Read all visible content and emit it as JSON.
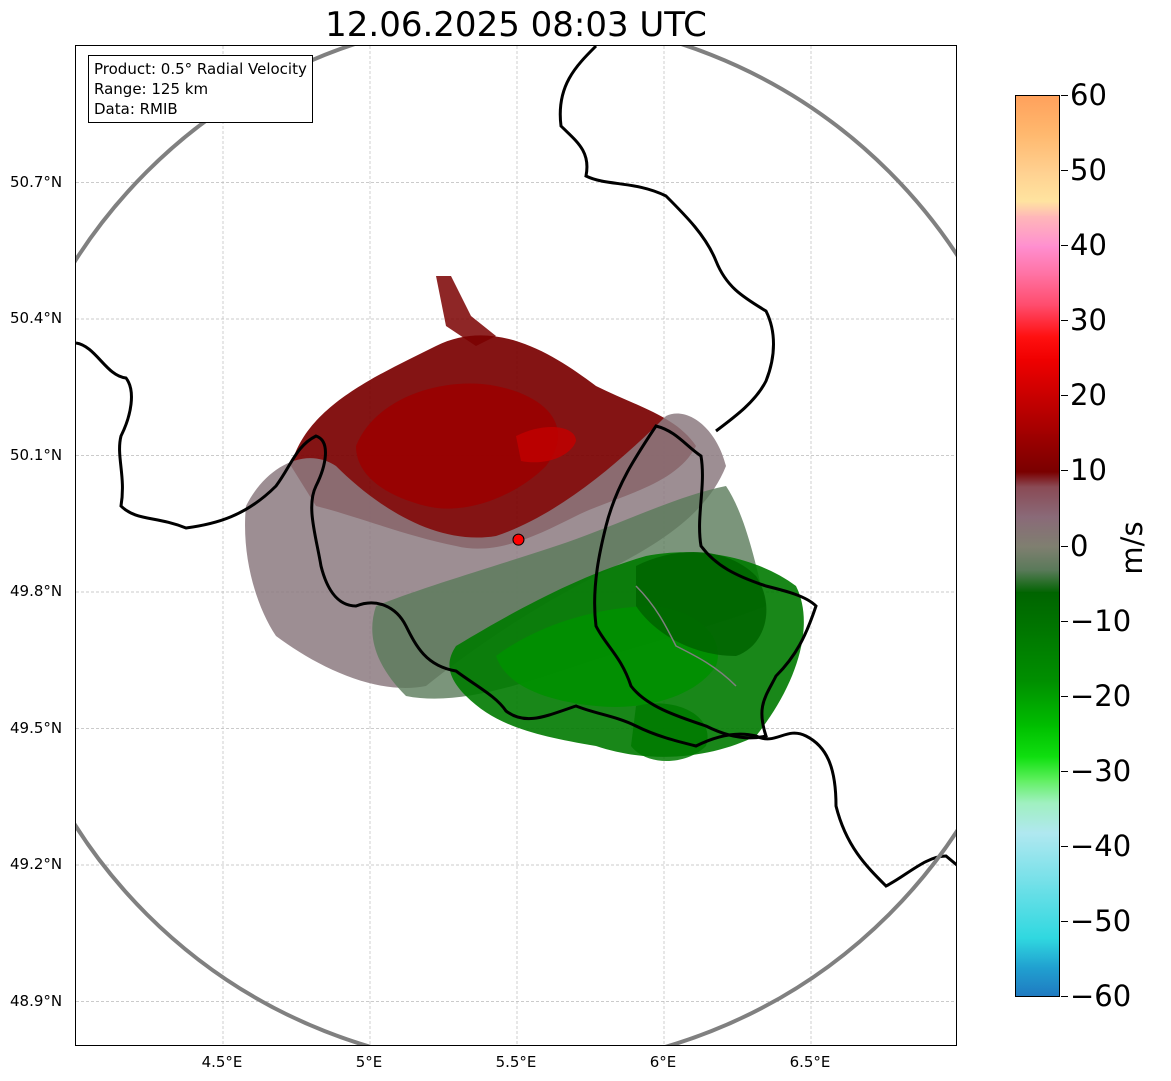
{
  "title": "12.06.2025 08:03 UTC",
  "info_box": {
    "product": "Product: 0.5° Radial Velocity",
    "range": "Range: 125 km",
    "data": "Data: RMIB"
  },
  "map": {
    "lon_range": [
      4.0,
      7.0
    ],
    "lat_range": [
      48.8,
      51.0
    ],
    "lat_ticks": [
      {
        "value": 50.7,
        "label": "50.7°N"
      },
      {
        "value": 50.4,
        "label": "50.4°N"
      },
      {
        "value": 50.1,
        "label": "50.1°N"
      },
      {
        "value": 49.8,
        "label": "49.8°N"
      },
      {
        "value": 49.5,
        "label": "49.5°N"
      },
      {
        "value": 49.2,
        "label": "49.2°N"
      },
      {
        "value": 48.9,
        "label": "48.9°N"
      }
    ],
    "lon_ticks": [
      {
        "value": 4.5,
        "label": "4.5°E"
      },
      {
        "value": 5.0,
        "label": "5°E"
      },
      {
        "value": 5.5,
        "label": "5.5°E"
      },
      {
        "value": 6.0,
        "label": "6°E"
      },
      {
        "value": 6.5,
        "label": "6.5°E"
      }
    ],
    "radar_site": {
      "lon": 5.505,
      "lat": 49.915,
      "color": "#ff0000"
    },
    "range_ring_color": "#808080",
    "border_color": "#000000",
    "grid": true,
    "echo_regions": [
      {
        "name": "inbound",
        "velocity": 15,
        "color": "#8b0000"
      },
      {
        "name": "near-zero",
        "velocity": 0,
        "color": "#8c7a80"
      },
      {
        "name": "outbound",
        "velocity": -15,
        "color": "#0a8a0a"
      }
    ]
  },
  "colorbar": {
    "unit": "m/s",
    "min": -60,
    "max": 60,
    "ticks": [
      "60",
      "50",
      "40",
      "30",
      "20",
      "10",
      "0",
      "−10",
      "−20",
      "−30",
      "−40",
      "−50",
      "−60"
    ],
    "stops": [
      {
        "v": 60,
        "c": "#ffa15c"
      },
      {
        "v": 55,
        "c": "#ffb86e"
      },
      {
        "v": 50,
        "c": "#ffd090"
      },
      {
        "v": 46,
        "c": "#ffe4a0"
      },
      {
        "v": 44,
        "c": "#ffb8b8"
      },
      {
        "v": 40,
        "c": "#ff8fd0"
      },
      {
        "v": 36,
        "c": "#ff70a0"
      },
      {
        "v": 32,
        "c": "#ff4a6a"
      },
      {
        "v": 28,
        "c": "#ff1010"
      },
      {
        "v": 25,
        "c": "#f00000"
      },
      {
        "v": 20,
        "c": "#c80000"
      },
      {
        "v": 15,
        "c": "#a00000"
      },
      {
        "v": 10,
        "c": "#7a0000"
      },
      {
        "v": 8,
        "c": "#8a4a55"
      },
      {
        "v": 4,
        "c": "#8a6a78"
      },
      {
        "v": 0,
        "c": "#7f7f70"
      },
      {
        "v": -3,
        "c": "#5a7a5a"
      },
      {
        "v": -6,
        "c": "#006400"
      },
      {
        "v": -12,
        "c": "#007a00"
      },
      {
        "v": -18,
        "c": "#009000"
      },
      {
        "v": -24,
        "c": "#00c000"
      },
      {
        "v": -28,
        "c": "#10e010"
      },
      {
        "v": -31,
        "c": "#60f060"
      },
      {
        "v": -34,
        "c": "#a0f0c0"
      },
      {
        "v": -38,
        "c": "#b0e8f0"
      },
      {
        "v": -45,
        "c": "#70e0e8"
      },
      {
        "v": -52,
        "c": "#30d8e0"
      },
      {
        "v": -56,
        "c": "#20a0d0"
      },
      {
        "v": -60,
        "c": "#1f78c0"
      }
    ]
  }
}
